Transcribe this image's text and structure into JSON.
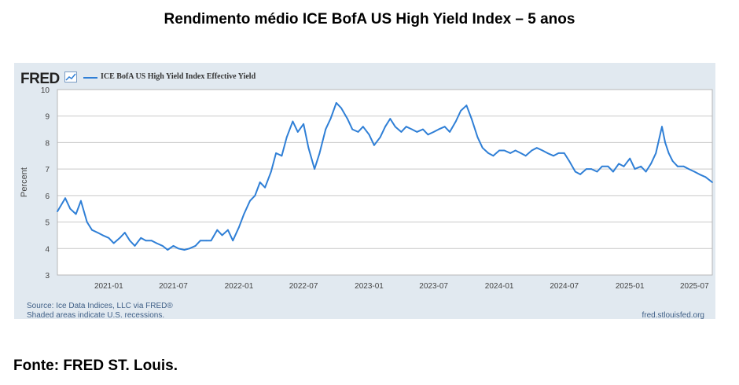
{
  "title": "Rendimento médio ICE BofA US High Yield Index – 5 anos",
  "fred_logo": "FRED",
  "fred_source": "Source: Ice Data Indices, LLC via FRED®",
  "fred_shading_note": "Shaded areas indicate U.S. recessions.",
  "fred_url": "fred.stlouisfed.org",
  "footer": "Fonte: FRED ST. Louis.",
  "colors": {
    "line": "#2f7fd6",
    "panel": "#e1e9f0",
    "plot_bg": "#ffffff",
    "grid": "#c9c9c9"
  },
  "chart_data": {
    "type": "line",
    "title": "Rendimento médio ICE BofA US High Yield Index – 5 anos",
    "xlabel": "",
    "ylabel": "Percent",
    "ylim": [
      3,
      10
    ],
    "xlim": [
      "2020-08-10",
      "2025-08-20"
    ],
    "grid": true,
    "legend_position": "top-left",
    "y_ticks": [
      3,
      4,
      5,
      6,
      7,
      8,
      9,
      10
    ],
    "x_ticks": [
      "2021-01",
      "2021-07",
      "2022-01",
      "2022-07",
      "2023-01",
      "2023-07",
      "2024-01",
      "2024-07",
      "2025-01",
      "2025-07"
    ],
    "series": [
      {
        "name": "ICE BofA US High Yield Index Effective Yield",
        "x": [
          "2020-08-10",
          "2020-09-01",
          "2020-09-15",
          "2020-10-01",
          "2020-10-15",
          "2020-11-01",
          "2020-11-15",
          "2020-12-01",
          "2020-12-15",
          "2021-01-01",
          "2021-01-15",
          "2021-02-01",
          "2021-02-15",
          "2021-03-01",
          "2021-03-15",
          "2021-04-01",
          "2021-04-15",
          "2021-05-01",
          "2021-05-15",
          "2021-06-01",
          "2021-06-15",
          "2021-07-01",
          "2021-07-15",
          "2021-08-01",
          "2021-08-15",
          "2021-09-01",
          "2021-09-15",
          "2021-10-01",
          "2021-10-15",
          "2021-11-01",
          "2021-11-15",
          "2021-12-01",
          "2021-12-15",
          "2022-01-01",
          "2022-01-15",
          "2022-02-01",
          "2022-02-15",
          "2022-03-01",
          "2022-03-15",
          "2022-04-01",
          "2022-04-15",
          "2022-05-01",
          "2022-05-15",
          "2022-06-01",
          "2022-06-15",
          "2022-07-01",
          "2022-07-15",
          "2022-08-01",
          "2022-08-15",
          "2022-09-01",
          "2022-09-15",
          "2022-10-01",
          "2022-10-15",
          "2022-11-01",
          "2022-11-15",
          "2022-12-01",
          "2022-12-15",
          "2023-01-01",
          "2023-01-15",
          "2023-02-01",
          "2023-02-15",
          "2023-03-01",
          "2023-03-15",
          "2023-04-01",
          "2023-04-15",
          "2023-05-01",
          "2023-05-15",
          "2023-06-01",
          "2023-06-15",
          "2023-07-01",
          "2023-07-15",
          "2023-08-01",
          "2023-08-15",
          "2023-09-01",
          "2023-09-15",
          "2023-10-01",
          "2023-10-15",
          "2023-11-01",
          "2023-11-15",
          "2023-12-01",
          "2023-12-15",
          "2024-01-01",
          "2024-01-15",
          "2024-02-01",
          "2024-02-15",
          "2024-03-01",
          "2024-03-15",
          "2024-04-01",
          "2024-04-15",
          "2024-05-01",
          "2024-05-15",
          "2024-06-01",
          "2024-06-15",
          "2024-07-01",
          "2024-07-15",
          "2024-08-01",
          "2024-08-15",
          "2024-09-01",
          "2024-09-15",
          "2024-10-01",
          "2024-10-15",
          "2024-11-01",
          "2024-11-15",
          "2024-12-01",
          "2024-12-15",
          "2025-01-01",
          "2025-01-15",
          "2025-02-01",
          "2025-02-15",
          "2025-03-01",
          "2025-03-15",
          "2025-04-01",
          "2025-04-10",
          "2025-04-20",
          "2025-05-01",
          "2025-05-15",
          "2025-06-01",
          "2025-06-15",
          "2025-07-01",
          "2025-07-15",
          "2025-08-01",
          "2025-08-20"
        ],
        "values": [
          5.4,
          5.9,
          5.5,
          5.3,
          5.8,
          5.0,
          4.7,
          4.6,
          4.5,
          4.4,
          4.2,
          4.4,
          4.6,
          4.3,
          4.1,
          4.4,
          4.3,
          4.3,
          4.2,
          4.1,
          3.95,
          4.1,
          4.0,
          3.95,
          4.0,
          4.1,
          4.3,
          4.3,
          4.3,
          4.7,
          4.5,
          4.7,
          4.3,
          4.8,
          5.3,
          5.8,
          6.0,
          6.5,
          6.3,
          6.9,
          7.6,
          7.5,
          8.2,
          8.8,
          8.4,
          8.7,
          7.8,
          7.0,
          7.6,
          8.5,
          8.9,
          9.5,
          9.3,
          8.9,
          8.5,
          8.4,
          8.6,
          8.3,
          7.9,
          8.2,
          8.6,
          8.9,
          8.6,
          8.4,
          8.6,
          8.5,
          8.4,
          8.5,
          8.3,
          8.4,
          8.5,
          8.6,
          8.4,
          8.8,
          9.2,
          9.4,
          8.9,
          8.2,
          7.8,
          7.6,
          7.5,
          7.7,
          7.7,
          7.6,
          7.7,
          7.6,
          7.5,
          7.7,
          7.8,
          7.7,
          7.6,
          7.5,
          7.6,
          7.6,
          7.3,
          6.9,
          6.8,
          7.0,
          7.0,
          6.9,
          7.1,
          7.1,
          6.9,
          7.2,
          7.1,
          7.4,
          7.0,
          7.1,
          6.9,
          7.2,
          7.6,
          8.6,
          8.0,
          7.6,
          7.3,
          7.1,
          7.1,
          7.0,
          6.9,
          6.8,
          6.7,
          6.5
        ]
      }
    ]
  }
}
